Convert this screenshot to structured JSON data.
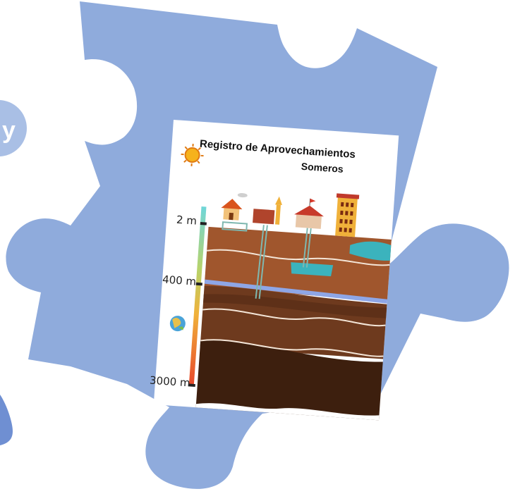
{
  "left_badge": {
    "letter": "y"
  },
  "card": {
    "title_line1": "Registro de Aprovechamientos",
    "title_line2": "Someros",
    "depth_labels": [
      "2 m",
      "400 m",
      "3000 m"
    ]
  },
  "colors": {
    "puzzle": "#8fabdc",
    "badge": "#a9bfe5",
    "badge_dark": "#6f8fd2",
    "soil_top": "#a0562d",
    "soil_mid": "#6e3a1e",
    "soil_deep": "#3d1f0e",
    "water": "#3bb3bd"
  }
}
